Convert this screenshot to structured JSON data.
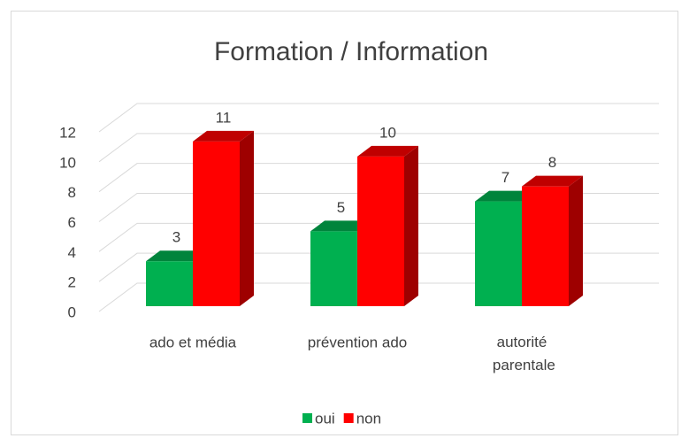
{
  "chart_data": {
    "type": "bar3d",
    "title": "Formation / Information",
    "categories": [
      "ado et média",
      "prévention ado",
      "autorité parentale"
    ],
    "series": [
      {
        "name": "oui",
        "color": "#00b050",
        "values": [
          3,
          5,
          7
        ]
      },
      {
        "name": "non",
        "color": "#ff0000",
        "values": [
          11,
          10,
          8
        ]
      }
    ],
    "ylim": [
      0,
      12
    ],
    "yticks": [
      0,
      2,
      4,
      6,
      8,
      10,
      12
    ],
    "grid": true,
    "legend": "bottom"
  }
}
